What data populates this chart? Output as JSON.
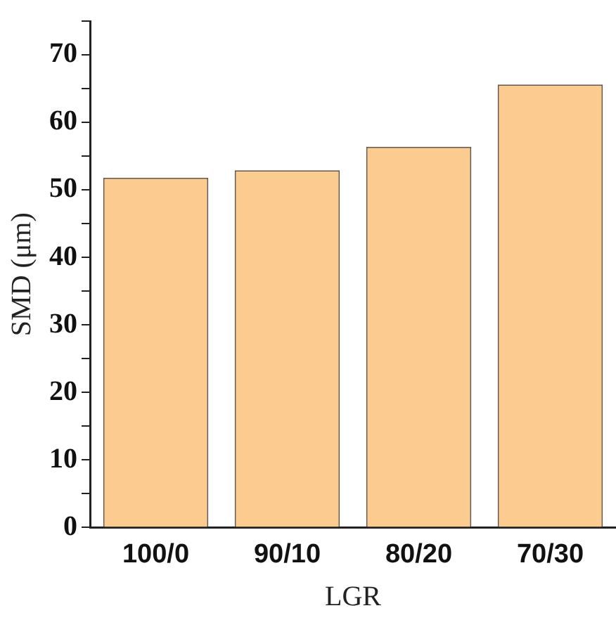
{
  "chart_data": {
    "type": "bar",
    "xlabel": "LGR",
    "ylabel": "SMD (μm)",
    "categories": [
      "100/0",
      "90/10",
      "80/20",
      "70/30"
    ],
    "values": [
      51.8,
      52.9,
      56.4,
      65.6
    ],
    "color": "#fccb8f",
    "ylim": [
      0,
      75
    ],
    "yticks": [
      0,
      {
        "value": 5,
        "label": null
      },
      10,
      {
        "value": 15,
        "label": null
      },
      20,
      {
        "value": 25,
        "label": null
      },
      30,
      {
        "value": 35,
        "label": null
      },
      40,
      {
        "value": 45,
        "label": null
      },
      50,
      {
        "value": 55,
        "label": null
      },
      60,
      {
        "value": 65,
        "label": null
      },
      70,
      {
        "value": 75,
        "label": null
      }
    ],
    "grid": false,
    "legend": false
  }
}
